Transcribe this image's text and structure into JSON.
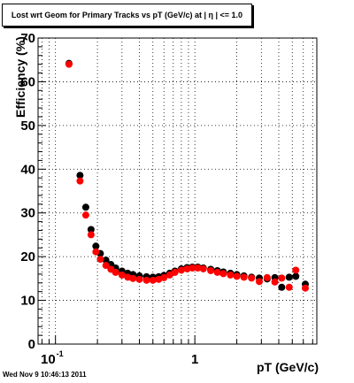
{
  "chart_data": {
    "type": "scatter",
    "title": "Lost wrt Geom for Primary Tracks vs pT (GeV/c) at |  η | <= 1.0",
    "xlabel": "pT (GeV/c)",
    "ylabel": "Efficiency (%)",
    "x_scale": "log",
    "xlim": [
      0.075,
      7.5
    ],
    "ylim": [
      0,
      70
    ],
    "x_tick_labels": [
      {
        "value": 0.1,
        "base": "10",
        "exp": "-1"
      },
      {
        "value": 1,
        "base": "1",
        "exp": ""
      }
    ],
    "y_ticks": [
      0,
      10,
      20,
      30,
      40,
      50,
      60,
      70
    ],
    "grid": true,
    "series": [
      {
        "color": "#000000",
        "points": [
          [
            0.125,
            64.2
          ],
          [
            0.15,
            38.6
          ],
          [
            0.165,
            31.3
          ],
          [
            0.18,
            26.2
          ],
          [
            0.195,
            22.4
          ],
          [
            0.21,
            20.7
          ],
          [
            0.23,
            19.2
          ],
          [
            0.25,
            18.2
          ],
          [
            0.27,
            17.4
          ],
          [
            0.3,
            16.7
          ],
          [
            0.33,
            16.2
          ],
          [
            0.36,
            15.9
          ],
          [
            0.4,
            15.6
          ],
          [
            0.45,
            15.4
          ],
          [
            0.5,
            15.3
          ],
          [
            0.55,
            15.4
          ],
          [
            0.6,
            15.7
          ],
          [
            0.66,
            16.2
          ],
          [
            0.72,
            16.7
          ],
          [
            0.8,
            17.2
          ],
          [
            0.88,
            17.5
          ],
          [
            0.96,
            17.6
          ],
          [
            1.05,
            17.6
          ],
          [
            1.15,
            17.4
          ],
          [
            1.3,
            17.1
          ],
          [
            1.45,
            16.8
          ],
          [
            1.6,
            16.5
          ],
          [
            1.8,
            16.2
          ],
          [
            2.0,
            15.9
          ],
          [
            2.25,
            15.6
          ],
          [
            2.55,
            15.3
          ],
          [
            2.9,
            15.1
          ],
          [
            3.3,
            14.9
          ],
          [
            3.75,
            15.2
          ],
          [
            4.2,
            13.0
          ],
          [
            4.75,
            15.3
          ],
          [
            5.3,
            15.5
          ],
          [
            6.2,
            13.7
          ]
        ]
      },
      {
        "color": "#ff0000",
        "points": [
          [
            0.125,
            64.0
          ],
          [
            0.15,
            37.3
          ],
          [
            0.165,
            29.5
          ],
          [
            0.18,
            25.0
          ],
          [
            0.195,
            21.1
          ],
          [
            0.21,
            19.4
          ],
          [
            0.23,
            18.0
          ],
          [
            0.25,
            17.1
          ],
          [
            0.27,
            16.4
          ],
          [
            0.3,
            15.8
          ],
          [
            0.33,
            15.3
          ],
          [
            0.36,
            15.0
          ],
          [
            0.4,
            14.8
          ],
          [
            0.45,
            14.6
          ],
          [
            0.5,
            14.6
          ],
          [
            0.55,
            14.8
          ],
          [
            0.6,
            15.2
          ],
          [
            0.66,
            15.8
          ],
          [
            0.72,
            16.4
          ],
          [
            0.8,
            16.9
          ],
          [
            0.88,
            17.2
          ],
          [
            0.96,
            17.4
          ],
          [
            1.05,
            17.4
          ],
          [
            1.15,
            17.2
          ],
          [
            1.3,
            16.8
          ],
          [
            1.45,
            16.4
          ],
          [
            1.6,
            16.1
          ],
          [
            1.8,
            15.8
          ],
          [
            2.0,
            15.5
          ],
          [
            2.25,
            15.3
          ],
          [
            2.55,
            15.1
          ],
          [
            2.9,
            14.3
          ],
          [
            3.3,
            15.2
          ],
          [
            3.75,
            14.2
          ],
          [
            4.2,
            15.1
          ],
          [
            4.75,
            13.0
          ],
          [
            5.3,
            16.9
          ],
          [
            6.2,
            12.8
          ]
        ]
      }
    ]
  },
  "timestamp": "Wed Nov  9 10:46:13 2011"
}
